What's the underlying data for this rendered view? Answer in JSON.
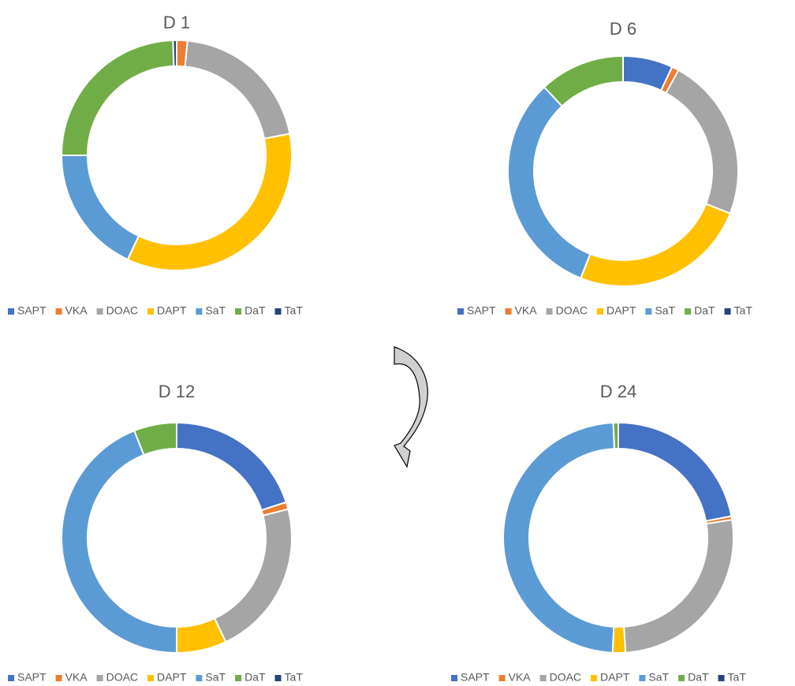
{
  "chart_data": [
    {
      "type": "donut",
      "title": "D 1",
      "categories": [
        "SAPT",
        "VKA",
        "DOAC",
        "DAPT",
        "SaT",
        "DaT",
        "TaT"
      ],
      "values": [
        0,
        1.5,
        20.5,
        35,
        18,
        24.5,
        0.5
      ],
      "colors": [
        "#4472c4",
        "#ed7d31",
        "#a5a5a5",
        "#ffc000",
        "#5b9bd5",
        "#70ad47",
        "#264478"
      ]
    },
    {
      "type": "donut",
      "title": "D 6",
      "categories": [
        "SAPT",
        "VKA",
        "DOAC",
        "DAPT",
        "SaT",
        "DaT",
        "TaT"
      ],
      "values": [
        7,
        1,
        23,
        25,
        32,
        12,
        0
      ],
      "colors": [
        "#4472c4",
        "#ed7d31",
        "#a5a5a5",
        "#ffc000",
        "#5b9bd5",
        "#70ad47",
        "#264478"
      ]
    },
    {
      "type": "donut",
      "title": "D 12",
      "categories": [
        "SAPT",
        "VKA",
        "DOAC",
        "DAPT",
        "SaT",
        "DaT",
        "TaT"
      ],
      "values": [
        20,
        1,
        22,
        7,
        44,
        6,
        0
      ],
      "colors": [
        "#4472c4",
        "#ed7d31",
        "#a5a5a5",
        "#ffc000",
        "#5b9bd5",
        "#70ad47",
        "#264478"
      ]
    },
    {
      "type": "donut",
      "title": "D 24",
      "categories": [
        "SAPT",
        "VKA",
        "DOAC",
        "DAPT",
        "SaT",
        "DaT",
        "TaT"
      ],
      "values": [
        22,
        0.5,
        26.5,
        1.8,
        48.5,
        0.7,
        0
      ],
      "colors": [
        "#4472c4",
        "#ed7d31",
        "#a5a5a5",
        "#ffc000",
        "#5b9bd5",
        "#70ad47",
        "#264478"
      ]
    }
  ]
}
